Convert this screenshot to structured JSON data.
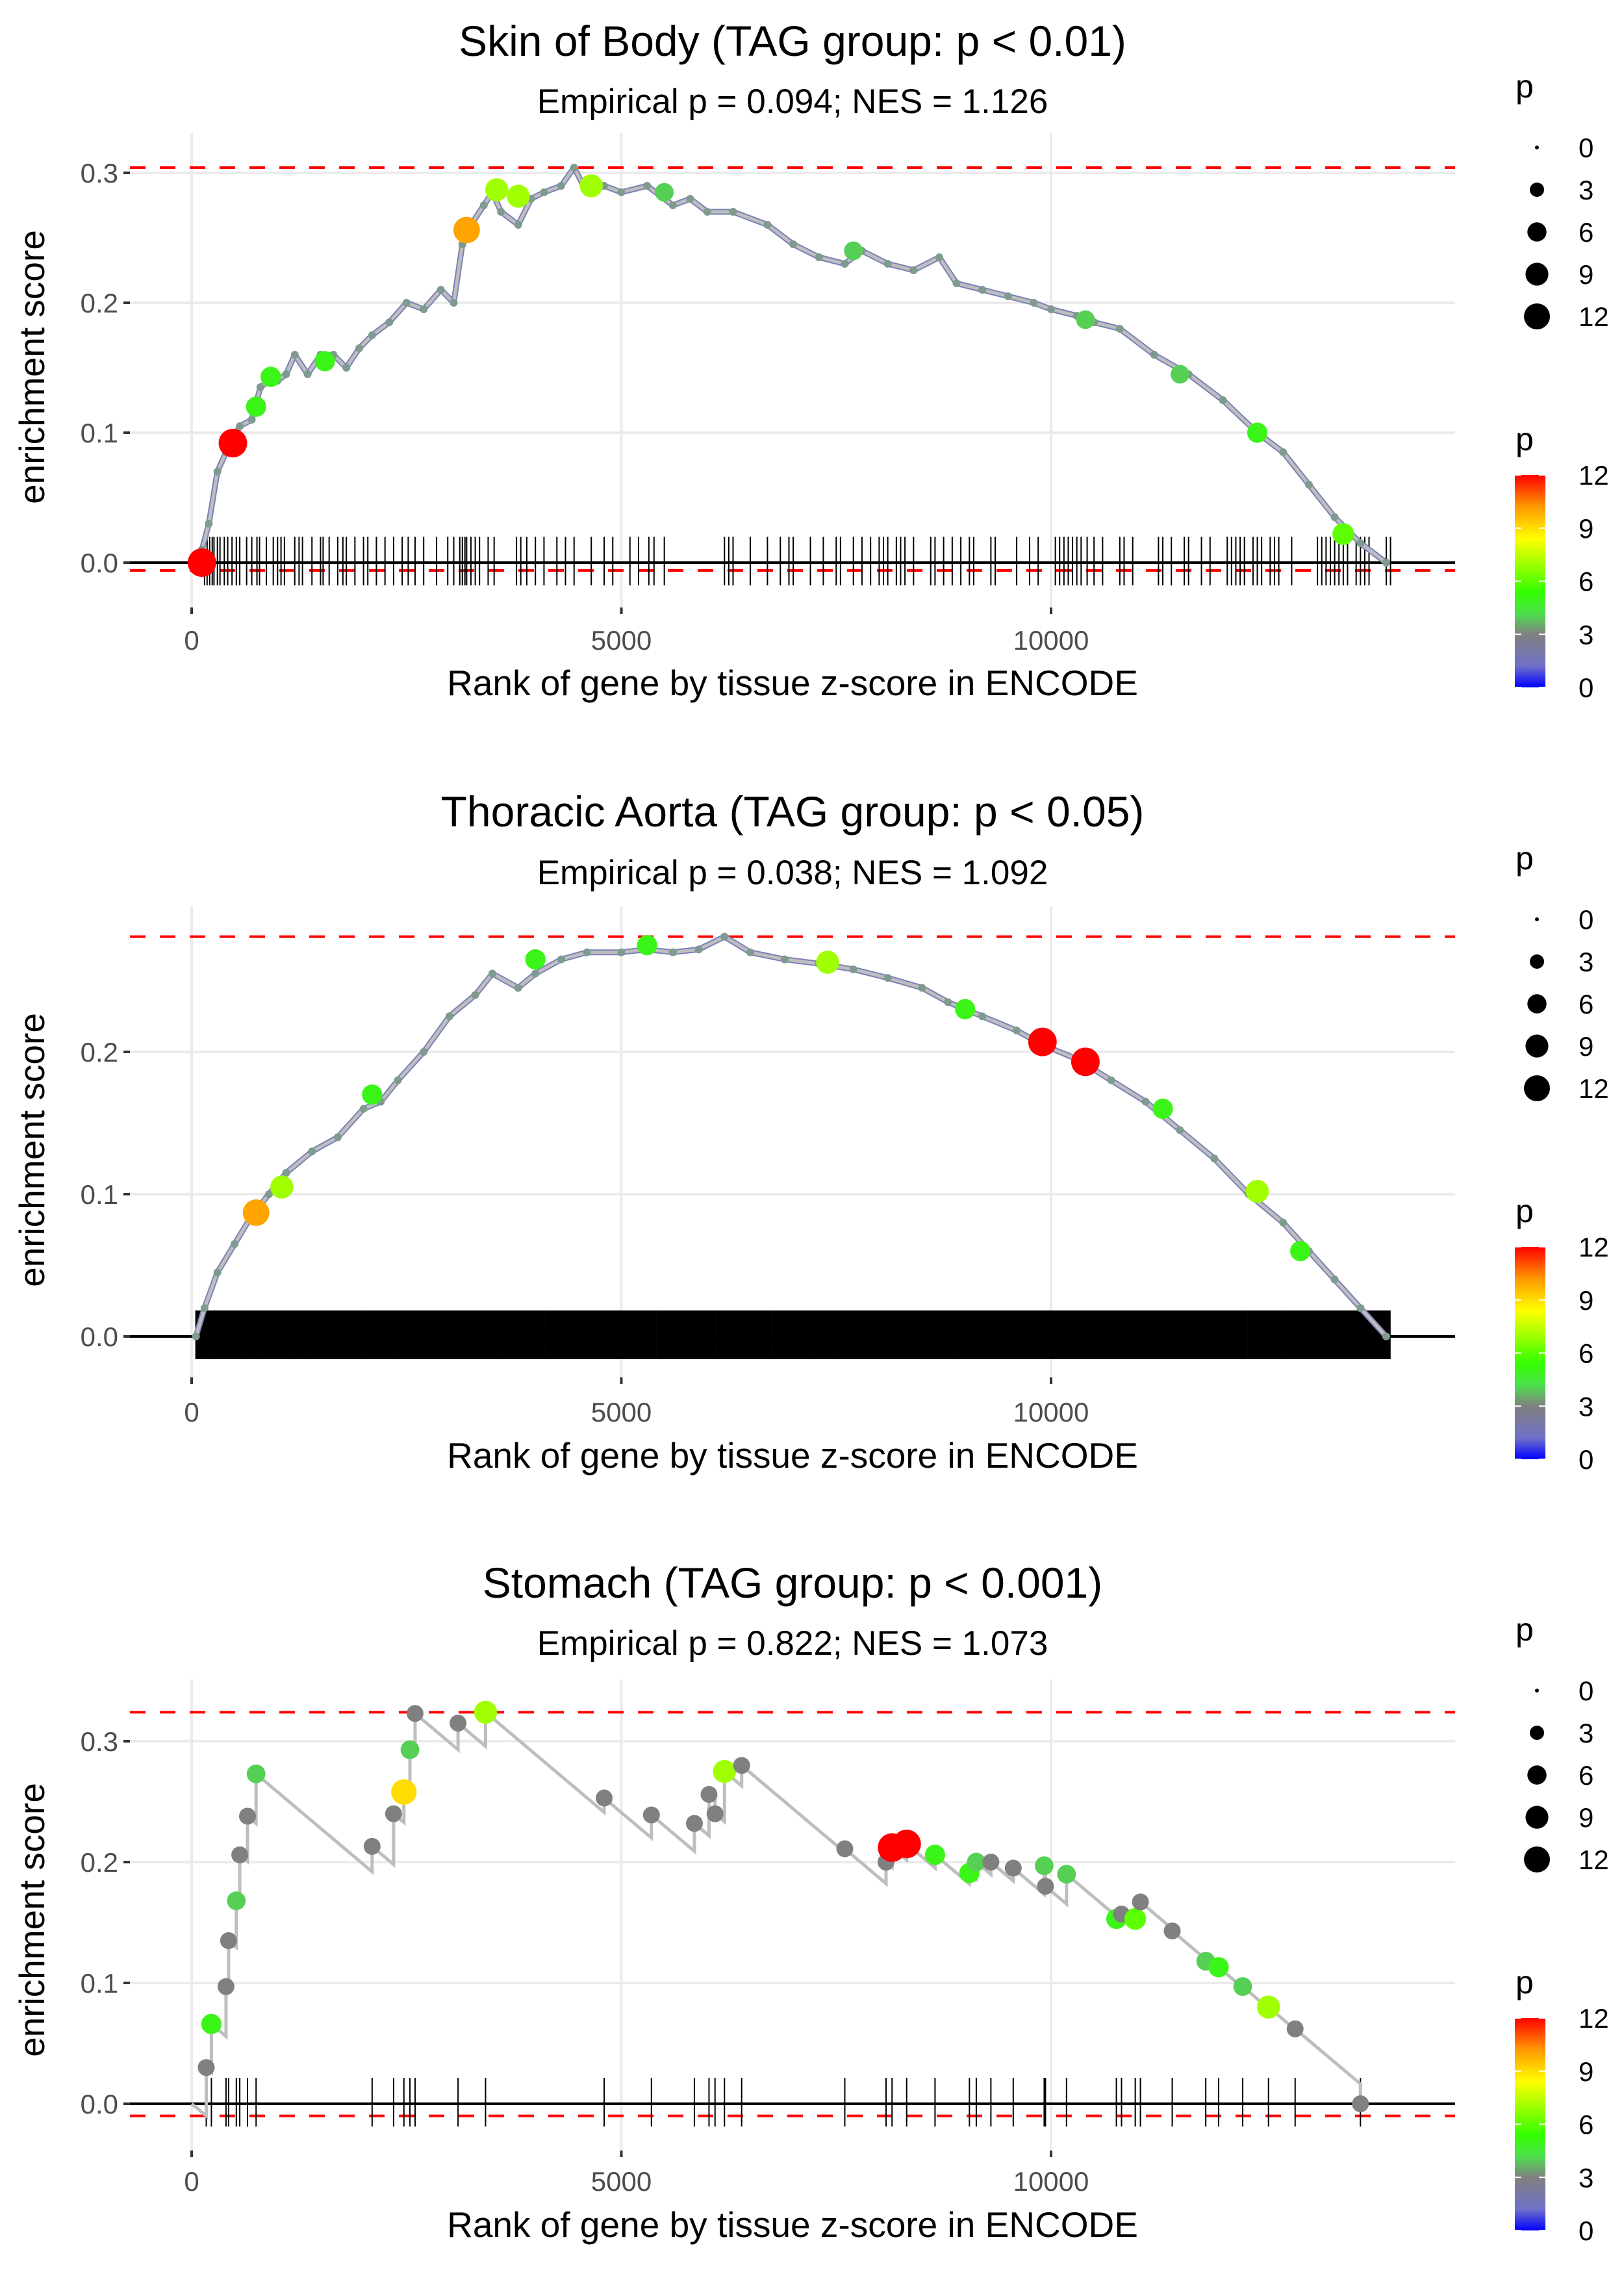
{
  "figure": {
    "legend_size": {
      "title": "p",
      "labels": [
        "0",
        "3",
        "6",
        "9",
        "12"
      ],
      "values": [
        0,
        3,
        6,
        9,
        12
      ]
    },
    "legend_color": {
      "title": "p",
      "labels": [
        "12",
        "9",
        "6",
        "3",
        "0"
      ],
      "values": [
        12,
        9,
        6,
        3,
        0
      ],
      "colors": {
        "low": "#0000ff",
        "mid_low": "#808080",
        "mid": "#33ff00",
        "mid_high": "#ffff00",
        "high": "#ff0000"
      }
    }
  },
  "chart_data": [
    {
      "type": "line",
      "title": "Skin of Body (TAG group: p < 0.01)",
      "subtitle": "Empirical p = 0.094; NES = 1.126",
      "xlabel": "Rank of gene by tissue z-score in ENCODE",
      "ylabel": "enrichment score",
      "xlim": [
        -700,
        14700
      ],
      "ylim": [
        -0.017,
        0.317
      ],
      "xticks": [
        0,
        5000,
        10000
      ],
      "xtick_labels": [
        "0",
        "5000",
        "10000"
      ],
      "yticks": [
        0.0,
        0.1,
        0.2,
        0.3
      ],
      "ytick_labels": [
        "0.0",
        "0.1",
        "0.2",
        "0.3"
      ],
      "max_es": 0.304,
      "min_es": -0.006,
      "curve": {
        "x": [
          0,
          120,
          200,
          300,
          400,
          480,
          560,
          700,
          800,
          900,
          1000,
          1100,
          1200,
          1350,
          1500,
          1650,
          1800,
          1950,
          2100,
          2300,
          2500,
          2700,
          2900,
          3050,
          3150,
          3250,
          3400,
          3500,
          3600,
          3800,
          3950,
          4100,
          4300,
          4450,
          4600,
          4800,
          5000,
          5300,
          5600,
          5800,
          6000,
          6300,
          6700,
          7000,
          7300,
          7600,
          7800,
          8100,
          8400,
          8700,
          8900,
          9200,
          9500,
          9800,
          10000,
          10300,
          10500,
          10800,
          11200,
          11600,
          12000,
          12400,
          12700,
          13000,
          13300,
          13600,
          13900
        ],
        "y": [
          0.0,
          0.01,
          0.03,
          0.07,
          0.085,
          0.095,
          0.105,
          0.11,
          0.135,
          0.14,
          0.14,
          0.145,
          0.16,
          0.145,
          0.16,
          0.16,
          0.15,
          0.165,
          0.175,
          0.185,
          0.2,
          0.195,
          0.21,
          0.2,
          0.245,
          0.26,
          0.275,
          0.285,
          0.27,
          0.26,
          0.28,
          0.285,
          0.29,
          0.304,
          0.285,
          0.29,
          0.285,
          0.29,
          0.275,
          0.28,
          0.27,
          0.27,
          0.26,
          0.245,
          0.235,
          0.23,
          0.24,
          0.23,
          0.225,
          0.235,
          0.215,
          0.21,
          0.205,
          0.2,
          0.195,
          0.19,
          0.185,
          0.18,
          0.16,
          0.145,
          0.125,
          0.1,
          0.085,
          0.06,
          0.035,
          0.015,
          0.0
        ]
      },
      "highlighted_points": [
        {
          "x": 120,
          "y": 0.0,
          "p": 12
        },
        {
          "x": 480,
          "y": 0.092,
          "p": 12
        },
        {
          "x": 750,
          "y": 0.12,
          "p": 5
        },
        {
          "x": 920,
          "y": 0.143,
          "p": 5
        },
        {
          "x": 1550,
          "y": 0.155,
          "p": 5
        },
        {
          "x": 3200,
          "y": 0.256,
          "p": 10
        },
        {
          "x": 3550,
          "y": 0.287,
          "p": 7
        },
        {
          "x": 3800,
          "y": 0.282,
          "p": 7
        },
        {
          "x": 4650,
          "y": 0.29,
          "p": 7
        },
        {
          "x": 5500,
          "y": 0.285,
          "p": 4
        },
        {
          "x": 7700,
          "y": 0.24,
          "p": 4
        },
        {
          "x": 10400,
          "y": 0.187,
          "p": 4
        },
        {
          "x": 11500,
          "y": 0.145,
          "p": 4
        },
        {
          "x": 12400,
          "y": 0.1,
          "p": 5
        },
        {
          "x": 13400,
          "y": 0.022,
          "p": 6
        }
      ],
      "hit_ranks": [
        150,
        180,
        210,
        240,
        260,
        300,
        330,
        380,
        420,
        470,
        520,
        560,
        640,
        700,
        760,
        790,
        870,
        950,
        1000,
        1040,
        1080,
        1200,
        1250,
        1290,
        1400,
        1500,
        1530,
        1600,
        1700,
        1760,
        1800,
        1900,
        2000,
        2050,
        2150,
        2250,
        2350,
        2450,
        2520,
        2600,
        2700,
        2850,
        2980,
        3050,
        3120,
        3150,
        3180,
        3200,
        3250,
        3300,
        3350,
        3450,
        3520,
        3780,
        3830,
        3900,
        4000,
        4100,
        4250,
        4350,
        4450,
        4650,
        4800,
        4900,
        5100,
        5200,
        5320,
        5380,
        5500,
        6200,
        6250,
        6300,
        6500,
        6700,
        6850,
        6950,
        7000,
        7200,
        7350,
        7500,
        7550,
        7700,
        7800,
        7900,
        8000,
        8050,
        8100,
        8200,
        8250,
        8300,
        8400,
        8600,
        8650,
        8750,
        8850,
        8950,
        9050,
        9100,
        9300,
        9350,
        9600,
        9750,
        9850,
        10050,
        10100,
        10150,
        10200,
        10250,
        10300,
        10350,
        10420,
        10500,
        10600,
        10800,
        10850,
        10950,
        11250,
        11300,
        11400,
        11550,
        11600,
        11750,
        11850,
        12050,
        12100,
        12150,
        12200,
        12250,
        12350,
        12400,
        12450,
        12550,
        12600,
        12650,
        12800,
        13100,
        13150,
        13200,
        13250,
        13300,
        13350,
        13400,
        13450,
        13550,
        13600,
        13650,
        13700,
        13900,
        13950
      ]
    },
    {
      "type": "line",
      "title": "Thoracic Aorta (TAG group: p < 0.05)",
      "subtitle": "Empirical p = 0.038; NES = 1.092",
      "xlabel": "Rank of gene by tissue z-score in ENCODE",
      "ylabel": "enrichment score",
      "xlim": [
        -700,
        14700
      ],
      "ylim": [
        -0.014,
        0.296
      ],
      "xticks": [
        0,
        5000,
        10000
      ],
      "xtick_labels": [
        "0",
        "5000",
        "10000"
      ],
      "yticks": [
        0.0,
        0.1,
        0.2
      ],
      "ytick_labels": [
        "0.0",
        "0.1",
        "0.2"
      ],
      "max_es": 0.281,
      "min_es": 0.0,
      "curve": {
        "x": [
          50,
          150,
          300,
          500,
          700,
          900,
          1100,
          1400,
          1700,
          2000,
          2200,
          2400,
          2700,
          3000,
          3300,
          3500,
          3800,
          4000,
          4300,
          4600,
          5000,
          5300,
          5600,
          5900,
          6200,
          6500,
          6900,
          7300,
          7700,
          8100,
          8500,
          8800,
          9200,
          9600,
          9900,
          10300,
          10700,
          11100,
          11500,
          11900,
          12300,
          12700,
          13000,
          13300,
          13600,
          13900
        ],
        "y": [
          0.0,
          0.02,
          0.045,
          0.065,
          0.085,
          0.1,
          0.115,
          0.13,
          0.14,
          0.16,
          0.165,
          0.18,
          0.2,
          0.225,
          0.24,
          0.255,
          0.245,
          0.255,
          0.265,
          0.27,
          0.27,
          0.272,
          0.27,
          0.272,
          0.281,
          0.27,
          0.265,
          0.262,
          0.258,
          0.252,
          0.245,
          0.235,
          0.225,
          0.215,
          0.205,
          0.195,
          0.18,
          0.165,
          0.145,
          0.125,
          0.1,
          0.08,
          0.06,
          0.04,
          0.02,
          0.0
        ]
      },
      "highlighted_points": [
        {
          "x": 750,
          "y": 0.087,
          "p": 10
        },
        {
          "x": 1050,
          "y": 0.105,
          "p": 7
        },
        {
          "x": 2100,
          "y": 0.17,
          "p": 5
        },
        {
          "x": 4000,
          "y": 0.265,
          "p": 5
        },
        {
          "x": 5300,
          "y": 0.275,
          "p": 5
        },
        {
          "x": 7400,
          "y": 0.263,
          "p": 7
        },
        {
          "x": 9000,
          "y": 0.23,
          "p": 5
        },
        {
          "x": 9900,
          "y": 0.207,
          "p": 12
        },
        {
          "x": 10400,
          "y": 0.193,
          "p": 12
        },
        {
          "x": 11300,
          "y": 0.16,
          "p": 5
        },
        {
          "x": 12400,
          "y": 0.102,
          "p": 7
        },
        {
          "x": 12900,
          "y": 0.06,
          "p": 5
        }
      ],
      "hits_dense": {
        "from": 50,
        "to": 13950,
        "approx_count": 1800
      }
    },
    {
      "type": "line",
      "title": "Stomach (TAG group: p < 0.001)",
      "subtitle": "Empirical p = 0.822; NES = 1.073",
      "xlabel": "Rank of gene by tissue z-score in ENCODE",
      "ylabel": "enrichment score",
      "xlim": [
        -700,
        14700
      ],
      "ylim": [
        -0.016,
        0.34
      ],
      "xticks": [
        0,
        5000,
        10000
      ],
      "xtick_labels": [
        "0",
        "5000",
        "10000"
      ],
      "yticks": [
        0.0,
        0.1,
        0.2,
        0.3
      ],
      "ytick_labels": [
        "0.0",
        "0.1",
        "0.2",
        "0.3"
      ],
      "max_es": 0.324,
      "min_es": -0.01,
      "hits": [
        {
          "x": 170,
          "y": 0.03,
          "p": 3
        },
        {
          "x": 230,
          "y": 0.066,
          "p": 5
        },
        {
          "x": 400,
          "y": 0.097,
          "p": 3
        },
        {
          "x": 430,
          "y": 0.135,
          "p": 3
        },
        {
          "x": 520,
          "y": 0.168,
          "p": 4
        },
        {
          "x": 560,
          "y": 0.206,
          "p": 3
        },
        {
          "x": 650,
          "y": 0.238,
          "p": 3
        },
        {
          "x": 750,
          "y": 0.273,
          "p": 4
        },
        {
          "x": 2100,
          "y": 0.213,
          "p": 3
        },
        {
          "x": 2350,
          "y": 0.24,
          "p": 3
        },
        {
          "x": 2470,
          "y": 0.258,
          "p": 9
        },
        {
          "x": 2540,
          "y": 0.293,
          "p": 4
        },
        {
          "x": 2600,
          "y": 0.323,
          "p": 3
        },
        {
          "x": 3100,
          "y": 0.315,
          "p": 3
        },
        {
          "x": 3420,
          "y": 0.324,
          "p": 7
        },
        {
          "x": 4800,
          "y": 0.253,
          "p": 3
        },
        {
          "x": 5350,
          "y": 0.239,
          "p": 3
        },
        {
          "x": 5850,
          "y": 0.232,
          "p": 3
        },
        {
          "x": 6020,
          "y": 0.256,
          "p": 3
        },
        {
          "x": 6090,
          "y": 0.24,
          "p": 3
        },
        {
          "x": 6200,
          "y": 0.275,
          "p": 7
        },
        {
          "x": 6400,
          "y": 0.28,
          "p": 3
        },
        {
          "x": 7600,
          "y": 0.211,
          "p": 3
        },
        {
          "x": 8080,
          "y": 0.2,
          "p": 3
        },
        {
          "x": 8150,
          "y": 0.212,
          "p": 12
        },
        {
          "x": 8320,
          "y": 0.215,
          "p": 12
        },
        {
          "x": 8650,
          "y": 0.206,
          "p": 5
        },
        {
          "x": 9050,
          "y": 0.191,
          "p": 5
        },
        {
          "x": 9130,
          "y": 0.2,
          "p": 4
        },
        {
          "x": 9300,
          "y": 0.2,
          "p": 3
        },
        {
          "x": 9560,
          "y": 0.195,
          "p": 3
        },
        {
          "x": 9920,
          "y": 0.197,
          "p": 4
        },
        {
          "x": 9935,
          "y": 0.18,
          "p": 3
        },
        {
          "x": 10180,
          "y": 0.19,
          "p": 4
        },
        {
          "x": 10760,
          "y": 0.153,
          "p": 5
        },
        {
          "x": 10820,
          "y": 0.157,
          "p": 3
        },
        {
          "x": 10980,
          "y": 0.153,
          "p": 6
        },
        {
          "x": 11040,
          "y": 0.167,
          "p": 3
        },
        {
          "x": 11410,
          "y": 0.143,
          "p": 3
        },
        {
          "x": 11800,
          "y": 0.118,
          "p": 4
        },
        {
          "x": 11950,
          "y": 0.113,
          "p": 5
        },
        {
          "x": 12230,
          "y": 0.097,
          "p": 4
        },
        {
          "x": 12530,
          "y": 0.08,
          "p": 7
        },
        {
          "x": 12840,
          "y": 0.062,
          "p": 3
        },
        {
          "x": 13600,
          "y": 0.0,
          "p": 3
        }
      ]
    }
  ]
}
